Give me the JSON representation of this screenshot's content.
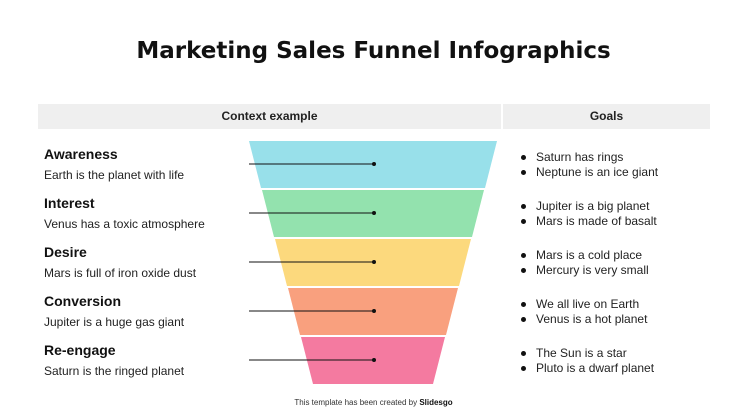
{
  "title": "Marketing Sales Funnel Infographics",
  "header": {
    "context": "Context example",
    "goals": "Goals"
  },
  "stages": [
    {
      "name": "Awareness",
      "desc": "Earth is the planet with life",
      "color": "#98e0ea",
      "goals": [
        "Saturn has rings",
        "Neptune is an ice giant"
      ]
    },
    {
      "name": "Interest",
      "desc": "Venus has a toxic atmosphere",
      "color": "#93e2ae",
      "goals": [
        "Jupiter is a big planet",
        "Mars is made of basalt"
      ]
    },
    {
      "name": "Desire",
      "desc": "Mars is full of iron oxide dust",
      "color": "#fcd97d",
      "goals": [
        "Mars is a cold place",
        "Mercury is very small"
      ]
    },
    {
      "name": "Conversion",
      "desc": "Jupiter is a huge gas giant",
      "color": "#f9a07e",
      "goals": [
        "We all live on Earth",
        "Venus is a hot planet"
      ]
    },
    {
      "name": "Re-engage",
      "desc": "Saturn is the ringed planet",
      "color": "#f47aa0",
      "goals": [
        "The Sun is a star",
        "Pluto is a dwarf planet"
      ]
    }
  ],
  "footer": {
    "prefix": "This template has been created by",
    "brand": "Slidesgo"
  }
}
